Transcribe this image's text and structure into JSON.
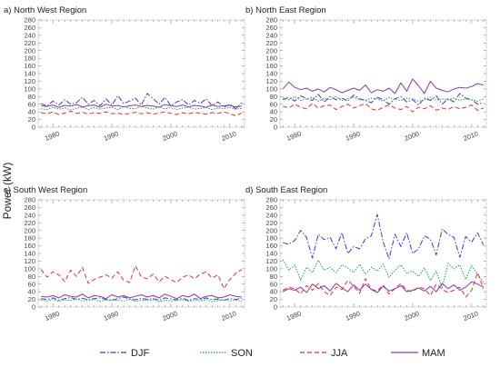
{
  "ylabel": "Power (kW)",
  "legend": [
    {
      "label": "DJF",
      "color": "#3a3ad6",
      "dash": "6,2,1.5,2"
    },
    {
      "label": "SON",
      "color": "#16a34a",
      "dash": "1.5,1.5"
    },
    {
      "label": "JJA",
      "color": "#e53030",
      "dash": "5,3"
    },
    {
      "label": "MAM",
      "color": "#8b3aa8",
      "dash": ""
    }
  ],
  "chart_data": [
    {
      "type": "line",
      "title": "a) North West Region",
      "x": [
        1978,
        1979,
        1980,
        1981,
        1982,
        1983,
        1984,
        1985,
        1986,
        1987,
        1988,
        1989,
        1990,
        1991,
        1992,
        1993,
        1994,
        1995,
        1996,
        1997,
        1998,
        1999,
        2000,
        2001,
        2002,
        2003,
        2004,
        2005,
        2006,
        2007,
        2008,
        2009,
        2010,
        2011,
        2012
      ],
      "ylim": [
        0,
        280
      ],
      "yticks": [
        0,
        20,
        40,
        60,
        80,
        100,
        120,
        140,
        160,
        180,
        200,
        220,
        240,
        260,
        280
      ],
      "xticks": [
        1980,
        1990,
        2000,
        2010
      ],
      "series": [
        {
          "name": "DJF",
          "values": [
            62,
            55,
            68,
            58,
            72,
            60,
            64,
            78,
            60,
            70,
            56,
            74,
            58,
            82,
            62,
            68,
            76,
            58,
            88,
            74,
            60,
            78,
            56,
            66,
            72,
            58,
            70,
            62,
            74,
            56,
            66,
            52,
            60,
            48,
            64
          ]
        },
        {
          "name": "SON",
          "values": [
            48,
            46,
            52,
            47,
            50,
            45,
            49,
            53,
            46,
            51,
            47,
            50,
            52,
            46,
            54,
            49,
            48,
            55,
            50,
            47,
            53,
            48,
            51,
            46,
            50,
            52,
            47,
            49,
            51,
            46,
            50,
            48,
            52,
            47,
            49
          ]
        },
        {
          "name": "JJA",
          "values": [
            38,
            35,
            40,
            33,
            37,
            42,
            36,
            39,
            34,
            38,
            36,
            40,
            35,
            37,
            33,
            36,
            39,
            35,
            38,
            34,
            37,
            40,
            36,
            33,
            38,
            35,
            39,
            36,
            34,
            38,
            36,
            40,
            35,
            30,
            37
          ]
        },
        {
          "name": "MAM",
          "values": [
            56,
            54,
            58,
            52,
            57,
            55,
            59,
            53,
            56,
            58,
            52,
            60,
            55,
            57,
            53,
            56,
            58,
            54,
            57,
            55,
            52,
            59,
            56,
            54,
            58,
            53,
            57,
            55,
            52,
            58,
            54,
            56,
            57,
            53,
            55
          ]
        }
      ]
    },
    {
      "type": "line",
      "title": "b) North East Region",
      "x": [
        1978,
        1979,
        1980,
        1981,
        1982,
        1983,
        1984,
        1985,
        1986,
        1987,
        1988,
        1989,
        1990,
        1991,
        1992,
        1993,
        1994,
        1995,
        1996,
        1997,
        1998,
        1999,
        2000,
        2001,
        2002,
        2003,
        2004,
        2005,
        2006,
        2007,
        2008,
        2009,
        2010,
        2011,
        2012
      ],
      "ylim": [
        0,
        280
      ],
      "yticks": [
        0,
        20,
        40,
        60,
        80,
        100,
        120,
        140,
        160,
        180,
        200,
        220,
        240,
        260,
        280
      ],
      "xticks": [
        1980,
        1990,
        2000,
        2010
      ],
      "series": [
        {
          "name": "DJF",
          "values": [
            72,
            78,
            68,
            82,
            74,
            70,
            86,
            66,
            80,
            72,
            76,
            68,
            84,
            74,
            70,
            64,
            78,
            72,
            60,
            74,
            80,
            66,
            72,
            58,
            76,
            70,
            82,
            60,
            74,
            66,
            88,
            76,
            72,
            60,
            64
          ]
        },
        {
          "name": "SON",
          "values": [
            76,
            72,
            80,
            70,
            74,
            78,
            68,
            76,
            72,
            80,
            70,
            75,
            78,
            72,
            70,
            76,
            74,
            68,
            78,
            72,
            70,
            76,
            74,
            68,
            72,
            78,
            70,
            74,
            72,
            76,
            70,
            74,
            72,
            68,
            74
          ]
        },
        {
          "name": "JJA",
          "values": [
            55,
            50,
            60,
            52,
            48,
            62,
            50,
            56,
            58,
            46,
            54,
            60,
            50,
            56,
            62,
            48,
            44,
            52,
            58,
            50,
            46,
            54,
            40,
            52,
            48,
            56,
            44,
            50,
            46,
            54,
            48,
            52,
            58,
            44,
            50
          ]
        },
        {
          "name": "MAM",
          "values": [
            100,
            118,
            104,
            98,
            102,
            94,
            100,
            92,
            104,
            98,
            90,
            96,
            102,
            96,
            110,
            90,
            98,
            94,
            102,
            88,
            116,
            94,
            126,
            108,
            88,
            120,
            102,
            96,
            92,
            100,
            104,
            102,
            106,
            114,
            110
          ]
        }
      ]
    },
    {
      "type": "line",
      "title": "c) South West Region",
      "x": [
        1978,
        1979,
        1980,
        1981,
        1982,
        1983,
        1984,
        1985,
        1986,
        1987,
        1988,
        1989,
        1990,
        1991,
        1992,
        1993,
        1994,
        1995,
        1996,
        1997,
        1998,
        1999,
        2000,
        2001,
        2002,
        2003,
        2004,
        2005,
        2006,
        2007,
        2008,
        2009,
        2010,
        2011,
        2012
      ],
      "ylim": [
        0,
        280
      ],
      "yticks": [
        0,
        20,
        40,
        60,
        80,
        100,
        120,
        140,
        160,
        180,
        200,
        220,
        240,
        260,
        280
      ],
      "xticks": [
        1980,
        1990,
        2000,
        2010
      ],
      "series": [
        {
          "name": "DJF",
          "values": [
            22,
            20,
            24,
            18,
            22,
            25,
            20,
            23,
            19,
            22,
            24,
            20,
            18,
            22,
            26,
            21,
            19,
            23,
            20,
            22,
            18,
            24,
            21,
            19,
            23,
            17,
            22,
            20,
            24,
            19,
            21,
            18,
            22,
            20,
            23
          ]
        },
        {
          "name": "SON",
          "values": [
            18,
            16,
            20,
            15,
            19,
            17,
            21,
            16,
            18,
            20,
            15,
            19,
            17,
            18,
            16,
            20,
            15,
            18,
            17,
            19,
            14,
            18,
            16,
            17,
            19,
            15,
            18,
            16,
            20,
            14,
            17,
            19,
            16,
            18,
            15
          ]
        },
        {
          "name": "JJA",
          "values": [
            98,
            78,
            92,
            84,
            66,
            96,
            80,
            104,
            62,
            72,
            78,
            84,
            76,
            92,
            70,
            64,
            108,
            78,
            74,
            86,
            66,
            80,
            72,
            64,
            78,
            84,
            74,
            86,
            92,
            76,
            84,
            48,
            72,
            88,
            98
          ]
        },
        {
          "name": "MAM",
          "values": [
            28,
            26,
            30,
            24,
            32,
            28,
            26,
            34,
            24,
            30,
            28,
            22,
            32,
            26,
            30,
            24,
            28,
            32,
            26,
            30,
            24,
            34,
            28,
            22,
            30,
            26,
            34,
            22,
            28,
            30,
            24,
            26,
            32,
            28,
            26
          ]
        }
      ]
    },
    {
      "type": "line",
      "title": "d) South East Region",
      "x": [
        1978,
        1979,
        1980,
        1981,
        1982,
        1983,
        1984,
        1985,
        1986,
        1987,
        1988,
        1989,
        1990,
        1991,
        1992,
        1993,
        1994,
        1995,
        1996,
        1997,
        1998,
        1999,
        2000,
        2001,
        2002,
        2003,
        2004,
        2005,
        2006,
        2007,
        2008,
        2009,
        2010,
        2011,
        2012
      ],
      "ylim": [
        0,
        280
      ],
      "yticks": [
        0,
        20,
        40,
        60,
        80,
        100,
        120,
        140,
        160,
        180,
        200,
        220,
        240,
        260,
        280
      ],
      "xticks": [
        1980,
        1990,
        2000,
        2010
      ],
      "series": [
        {
          "name": "DJF",
          "values": [
            168,
            164,
            174,
            200,
            182,
            128,
            190,
            176,
            182,
            152,
            194,
            140,
            158,
            152,
            178,
            186,
            242,
            170,
            126,
            190,
            158,
            194,
            140,
            152,
            186,
            178,
            136,
            204,
            190,
            182,
            130,
            184,
            170,
            194,
            162
          ]
        },
        {
          "name": "SON",
          "values": [
            124,
            96,
            110,
            70,
            104,
            90,
            122,
            96,
            104,
            90,
            110,
            102,
            90,
            112,
            86,
            104,
            94,
            112,
            78,
            96,
            110,
            88,
            94,
            80,
            102,
            70,
            94,
            50,
            114,
            100,
            110,
            72,
            108,
            86,
            64
          ]
        },
        {
          "name": "JJA",
          "values": [
            44,
            52,
            48,
            34,
            56,
            44,
            62,
            40,
            30,
            52,
            46,
            70,
            54,
            36,
            74,
            46,
            42,
            58,
            34,
            48,
            62,
            44,
            40,
            52,
            48,
            30,
            60,
            46,
            38,
            44,
            52,
            26,
            44,
            90,
            48
          ]
        },
        {
          "name": "MAM",
          "values": [
            40,
            48,
            44,
            52,
            38,
            60,
            48,
            56,
            42,
            62,
            50,
            40,
            58,
            44,
            60,
            46,
            38,
            54,
            42,
            48,
            56,
            40,
            44,
            50,
            42,
            54,
            40,
            62,
            48,
            58,
            44,
            52,
            66,
            60,
            52
          ]
        }
      ]
    }
  ]
}
